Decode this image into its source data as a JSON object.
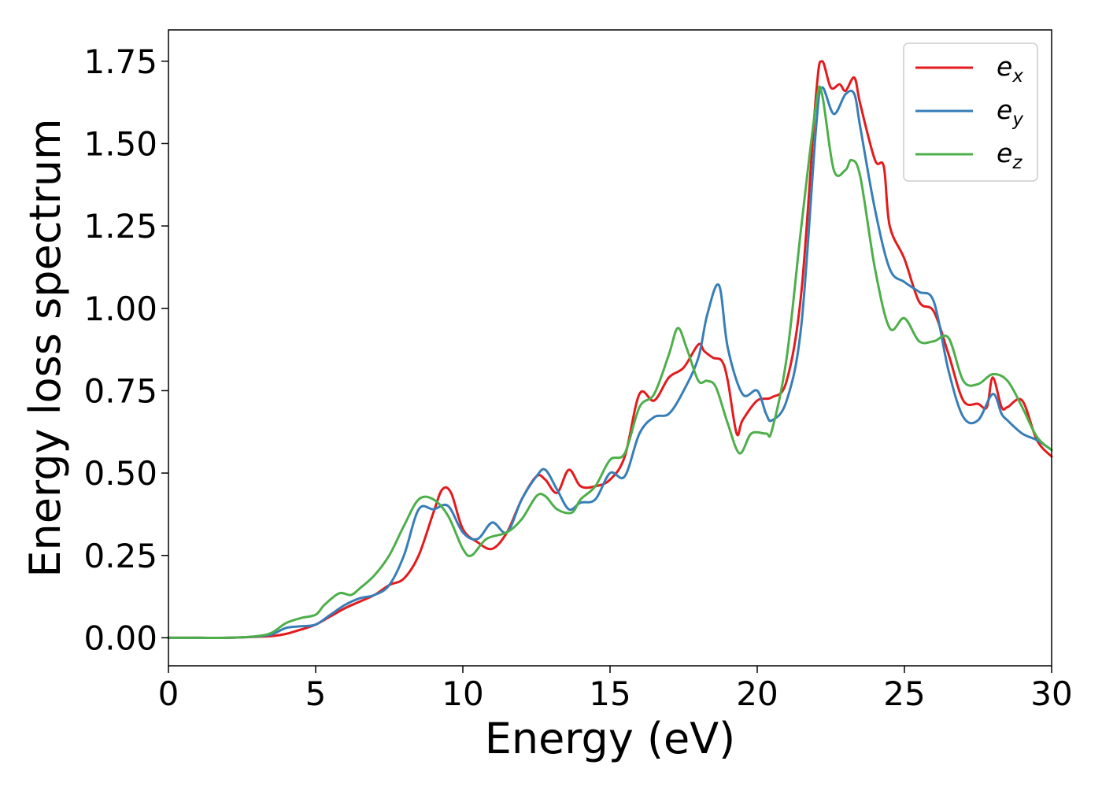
{
  "chart_data": {
    "type": "line",
    "xlabel": "Energy (eV)",
    "ylabel": "Energy loss spectrum",
    "xlim": [
      0,
      30
    ],
    "ylim": [
      -0.085,
      1.845
    ],
    "xticks": [
      "0",
      "5",
      "10",
      "15",
      "20",
      "25",
      "30"
    ],
    "yticks": [
      "0.00",
      "0.25",
      "0.50",
      "0.75",
      "1.00",
      "1.25",
      "1.50",
      "1.75"
    ],
    "grid": false,
    "legend_position": "top-right",
    "series": [
      {
        "name": "e_x",
        "base": "e",
        "sub": "x",
        "color": "#e41a1c",
        "x": [
          0,
          1,
          2,
          3,
          3.5,
          4,
          4.5,
          5,
          5.5,
          6,
          6.5,
          7,
          7.5,
          8,
          8.5,
          9,
          9.3,
          9.6,
          10,
          10.5,
          11,
          11.5,
          12,
          12.5,
          12.8,
          13.2,
          13.6,
          14,
          14.5,
          15,
          15.5,
          16,
          16.5,
          17,
          17.5,
          18,
          18.2,
          18.5,
          18.8,
          19,
          19.3,
          19.5,
          20,
          20.5,
          21,
          21.5,
          22,
          22.2,
          22.5,
          22.8,
          23,
          23.3,
          23.5,
          24,
          24.3,
          24.5,
          25,
          25.5,
          26,
          26.5,
          27,
          27.5,
          27.8,
          28,
          28.3,
          28.5,
          29,
          29.5,
          30
        ],
        "y": [
          0,
          0,
          0,
          0.003,
          0.005,
          0.012,
          0.025,
          0.04,
          0.065,
          0.09,
          0.11,
          0.13,
          0.16,
          0.18,
          0.25,
          0.38,
          0.45,
          0.44,
          0.33,
          0.29,
          0.27,
          0.32,
          0.42,
          0.49,
          0.48,
          0.44,
          0.51,
          0.46,
          0.46,
          0.48,
          0.55,
          0.74,
          0.72,
          0.79,
          0.82,
          0.89,
          0.87,
          0.85,
          0.84,
          0.78,
          0.62,
          0.66,
          0.72,
          0.73,
          0.78,
          1.05,
          1.65,
          1.75,
          1.67,
          1.68,
          1.66,
          1.7,
          1.62,
          1.45,
          1.43,
          1.25,
          1.15,
          1.02,
          0.99,
          0.86,
          0.72,
          0.71,
          0.7,
          0.79,
          0.7,
          0.7,
          0.72,
          0.6,
          0.55
        ]
      },
      {
        "name": "e_y",
        "base": "e",
        "sub": "y",
        "color": "#377eb8",
        "x": [
          0,
          1,
          2,
          3,
          3.5,
          4,
          4.5,
          5,
          5.5,
          6,
          6.5,
          7,
          7.5,
          8,
          8.5,
          9,
          9.5,
          10,
          10.5,
          11,
          11.5,
          12,
          12.5,
          12.8,
          13.2,
          13.6,
          14,
          14.5,
          15,
          15.5,
          16,
          16.5,
          17,
          17.5,
          18,
          18.3,
          18.7,
          19,
          19.5,
          20,
          20.3,
          20.5,
          21,
          21.5,
          22,
          22.2,
          22.6,
          23,
          23.3,
          23.5,
          24,
          24.5,
          25,
          25.5,
          26,
          26.5,
          27,
          27.5,
          28,
          28.3,
          28.5,
          29,
          29.5,
          30
        ],
        "y": [
          0,
          0,
          0,
          0.004,
          0.01,
          0.03,
          0.035,
          0.04,
          0.07,
          0.1,
          0.12,
          0.13,
          0.16,
          0.25,
          0.39,
          0.39,
          0.4,
          0.32,
          0.3,
          0.35,
          0.32,
          0.42,
          0.49,
          0.51,
          0.45,
          0.39,
          0.41,
          0.42,
          0.5,
          0.49,
          0.62,
          0.67,
          0.68,
          0.75,
          0.85,
          0.98,
          1.07,
          0.88,
          0.74,
          0.75,
          0.68,
          0.66,
          0.72,
          0.95,
          1.55,
          1.67,
          1.59,
          1.65,
          1.65,
          1.55,
          1.3,
          1.12,
          1.08,
          1.05,
          1.02,
          0.81,
          0.67,
          0.66,
          0.74,
          0.68,
          0.66,
          0.62,
          0.6,
          0.57
        ]
      },
      {
        "name": "e_z",
        "base": "e",
        "sub": "z",
        "color": "#4daf4a",
        "x": [
          0,
          1,
          2,
          3,
          3.5,
          4,
          4.5,
          5,
          5.3,
          5.8,
          6.2,
          6.5,
          7,
          7.5,
          8,
          8.5,
          9,
          9.5,
          10,
          10.3,
          10.8,
          11.5,
          12,
          12.5,
          12.8,
          13.2,
          13.7,
          14,
          14.5,
          15,
          15.5,
          16,
          16.5,
          17,
          17.3,
          17.6,
          18,
          18.3,
          18.6,
          19,
          19.4,
          19.8,
          20.3,
          20.5,
          21,
          21.5,
          22,
          22.2,
          22.6,
          23,
          23.2,
          23.5,
          24,
          24.5,
          25,
          25.5,
          26,
          26.5,
          27,
          27.5,
          28,
          28.5,
          29,
          29.5,
          30
        ],
        "y": [
          0,
          0,
          0,
          0.005,
          0.015,
          0.045,
          0.06,
          0.07,
          0.1,
          0.135,
          0.13,
          0.15,
          0.19,
          0.25,
          0.34,
          0.42,
          0.42,
          0.37,
          0.27,
          0.25,
          0.3,
          0.32,
          0.36,
          0.43,
          0.43,
          0.39,
          0.38,
          0.42,
          0.46,
          0.54,
          0.56,
          0.7,
          0.74,
          0.86,
          0.94,
          0.88,
          0.78,
          0.78,
          0.76,
          0.65,
          0.56,
          0.62,
          0.62,
          0.63,
          0.85,
          1.25,
          1.62,
          1.65,
          1.42,
          1.42,
          1.45,
          1.4,
          1.12,
          0.94,
          0.97,
          0.9,
          0.9,
          0.91,
          0.78,
          0.77,
          0.8,
          0.78,
          0.7,
          0.61,
          0.57
        ]
      }
    ]
  }
}
